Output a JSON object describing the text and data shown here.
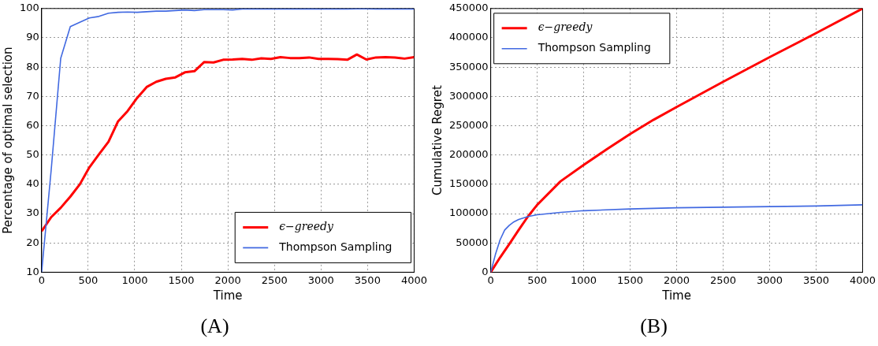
{
  "chart_data": [
    {
      "type": "line",
      "xlabel": "Time",
      "ylabel": "Percentage of optimal selection",
      "annotations": [
        "(A)"
      ],
      "xlim": [
        0,
        4000
      ],
      "xticks": [
        0,
        500,
        1000,
        1500,
        2000,
        2500,
        3000,
        3500,
        4000
      ],
      "ylim": [
        10,
        100
      ],
      "yticks": [
        10,
        20,
        30,
        40,
        50,
        60,
        70,
        80,
        90,
        100
      ],
      "grid": true,
      "legend": "bottom right",
      "marker": "none",
      "line_style": "solid",
      "x": [
        0,
        103,
        205,
        308,
        410,
        513,
        615,
        718,
        821,
        923,
        1026,
        1128,
        1231,
        1333,
        1436,
        1538,
        1641,
        1744,
        1846,
        1949,
        2051,
        2154,
        2256,
        2359,
        2462,
        2564,
        2667,
        2769,
        2872,
        2974,
        3077,
        3179,
        3282,
        3385,
        3487,
        3590,
        3692,
        3795,
        3897,
        4000
      ],
      "series": [
        {
          "name": "ϵ−greedy",
          "color": "#ff0000",
          "values": [
            24,
            28.8,
            32,
            35.8,
            40,
            45.8,
            50.2,
            54.5,
            61.5,
            65,
            69.5,
            73.2,
            75,
            76,
            76.5,
            78.2,
            78.6,
            81.7,
            81.6,
            82.5,
            82.6,
            82.8,
            82.5,
            83,
            82.8,
            83.4,
            83.1,
            83.1,
            83.3,
            82.8,
            82.8,
            82.7,
            82.5,
            84.3,
            82.6,
            83.3,
            83.4,
            83.3,
            82.9,
            83.4
          ]
        },
        {
          "name": "Thompson Sampling",
          "color": "#4169e1",
          "values": [
            10,
            45,
            83,
            93.8,
            95.3,
            96.8,
            97.3,
            98.4,
            98.7,
            98.8,
            98.7,
            98.9,
            99.1,
            99.1,
            99.3,
            99.5,
            99.3,
            99.6,
            99.6,
            99.6,
            99.5,
            99.8,
            99.8,
            99.8,
            99.8,
            99.8,
            99.8,
            99.8,
            99.9,
            99.8,
            99.8,
            99.8,
            99.8,
            99.9,
            99.9,
            99.8,
            99.9,
            99.8,
            99.8,
            99.8
          ]
        }
      ]
    },
    {
      "type": "line",
      "xlabel": "Time",
      "ylabel": "Cumulative Regret",
      "annotations": [
        "(B)"
      ],
      "xlim": [
        0,
        4000
      ],
      "xticks": [
        0,
        500,
        1000,
        1500,
        2000,
        2500,
        3000,
        3500,
        4000
      ],
      "ylim": [
        0,
        450000
      ],
      "yticks": [
        0,
        50000,
        100000,
        150000,
        200000,
        250000,
        300000,
        350000,
        400000,
        450000
      ],
      "grid": true,
      "legend": "top left",
      "marker": "none",
      "line_style": "solid",
      "series": [
        {
          "name": "ϵ−greedy",
          "color": "#ff0000",
          "x": [
            0,
            100,
            200,
            300,
            400,
            500,
            750,
            1000,
            1250,
            1500,
            1750,
            2000,
            2500,
            3000,
            3500,
            4000
          ],
          "values": [
            0,
            25000,
            48000,
            72000,
            95000,
            115000,
            155000,
            183000,
            210000,
            236000,
            260000,
            282000,
            325000,
            367000,
            408000,
            450000
          ]
        },
        {
          "name": "Thompson Sampling",
          "color": "#4169e1",
          "x": [
            0,
            50,
            100,
            150,
            200,
            250,
            300,
            400,
            500,
            750,
            1000,
            1500,
            2000,
            2500,
            3000,
            3500,
            4000
          ],
          "values": [
            0,
            30000,
            55000,
            72000,
            80000,
            86000,
            90000,
            95000,
            98000,
            102000,
            105000,
            108000,
            110000,
            111000,
            112000,
            113000,
            115000
          ]
        }
      ]
    }
  ]
}
